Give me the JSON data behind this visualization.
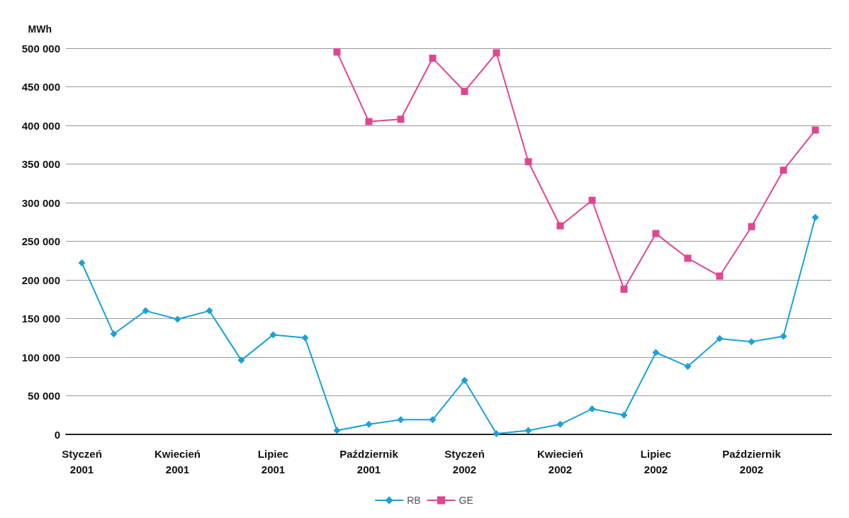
{
  "chart_data": {
    "type": "line",
    "ylabel": "MWh",
    "categories": [
      "Styczeń 2001",
      null,
      null,
      "Kwiecień 2001",
      null,
      null,
      "Lipiec 2001",
      null,
      null,
      "Październik 2001",
      null,
      null,
      "Styczeń 2002",
      null,
      null,
      "Kwiecień 2002",
      null,
      null,
      "Lipiec 2002",
      null,
      null,
      "Październik 2002",
      null,
      null
    ],
    "series": [
      {
        "name": "RB",
        "color": "#1ba1d8",
        "marker": "diamond",
        "values": [
          222000,
          130000,
          160000,
          149000,
          160000,
          96000,
          129000,
          125000,
          5000,
          13000,
          19000,
          19000,
          70000,
          1000,
          5000,
          13000,
          33000,
          25000,
          106000,
          88000,
          124000,
          120000,
          127000,
          281000
        ]
      },
      {
        "name": "GE",
        "color": "#e0468f",
        "marker": "square",
        "values": [
          null,
          null,
          null,
          null,
          null,
          null,
          null,
          null,
          495000,
          405000,
          408000,
          487000,
          444000,
          494000,
          353000,
          270000,
          303000,
          188000,
          260000,
          228000,
          205000,
          269000,
          342000,
          394000
        ]
      }
    ],
    "ylim": [
      0,
      500000
    ],
    "yticks": [
      0,
      {
        "value": 50000,
        "label": "50 000"
      },
      {
        "value": 100000,
        "label": "100 000"
      },
      {
        "value": 150000,
        "label": "150 000"
      },
      {
        "value": 200000,
        "label": "200 000"
      },
      {
        "value": 250000,
        "label": "250 000"
      },
      {
        "value": 300000,
        "label": "300 000"
      },
      {
        "value": 350000,
        "label": "350 000"
      },
      {
        "value": 400000,
        "label": "400 000"
      },
      {
        "value": 450000,
        "label": "450 000"
      },
      {
        "value": 500000,
        "label": "500 000"
      }
    ],
    "grid": "y",
    "legend": "bottom"
  }
}
